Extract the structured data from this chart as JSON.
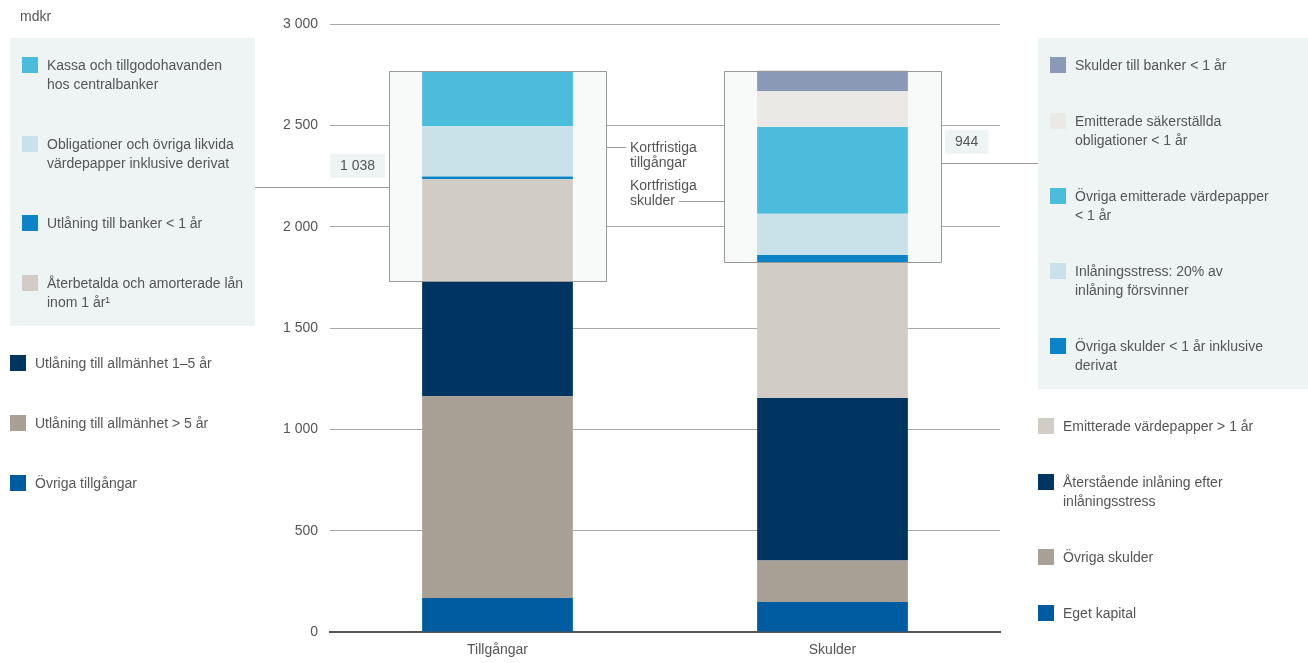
{
  "chart_data": {
    "type": "bar",
    "stacked": true,
    "categories": [
      "Tillgångar",
      "Skulder"
    ],
    "ylim": [
      0,
      3000
    ],
    "yticks": [
      0,
      500,
      {
        "value": 1000,
        "label": "1 000"
      },
      {
        "value": 1500,
        "label": "1 500"
      },
      {
        "value": 2000,
        "label": "2 000"
      },
      {
        "value": 2500,
        "label": "2 500"
      },
      {
        "value": 3000,
        "label": "3 000"
      }
    ],
    "grid": "y",
    "legend": "left and right",
    "series": [
      {
        "name": "Övriga tillgångar",
        "color": "#005ca1",
        "values": [
          168,
          null
        ]
      },
      {
        "name": "Utlåning till allmänhet > 5 år",
        "color": "#a89f95",
        "values": [
          995,
          null
        ]
      },
      {
        "name": "Utlåning till allmänhet 1–5 år",
        "color": "#003562",
        "values": [
          567,
          null
        ]
      },
      {
        "name": "Återbetalda och amorterade lån inom 1 år¹",
        "color": "#d1cdc6",
        "values": [
          504,
          null
        ]
      },
      {
        "name": "Utlåning till banker < 1 år",
        "color": "#0a84c6",
        "values": [
          14,
          null
        ]
      },
      {
        "name": "Obligationer och övriga likvida värdepapper inklusive derivat",
        "color": "#c9e1e8",
        "values": [
          249,
          null
        ]
      },
      {
        "name": "Kassa och tillgodohavanden hos centralbanker",
        "color": "#4bbcdb",
        "values": [
          271,
          null
        ]
      },
      {
        "name": "Eget kapital",
        "color": "#005ca1",
        "values": [
          null,
          148
        ]
      },
      {
        "name": "Övriga skulder",
        "color": "#a89f95",
        "values": [
          null,
          205
        ]
      },
      {
        "name": "Återstående inlåning efter inlåningsstress",
        "color": "#003562",
        "values": [
          null,
          802
        ]
      },
      {
        "name": "Emitterade värdepapper > 1 år",
        "color": "#d1cdc6",
        "values": [
          null,
          670
        ]
      },
      {
        "name": "Övriga skulder < 1 år inklusive derivat",
        "color": "#0a84c6",
        "values": [
          null,
          35
        ]
      },
      {
        "name": "Inlåningsstress: 20% av inlåning försvinner",
        "color": "#c9e1e8",
        "values": [
          null,
          204
        ]
      },
      {
        "name": "Övriga emitterade värdepapper < 1 år",
        "color": "#4bbcdb",
        "values": [
          null,
          428
        ]
      },
      {
        "name": "Emitterade säkerställda obligationer < 1 år",
        "color": "#eae9e5",
        "values": [
          null,
          176
        ]
      },
      {
        "name": "Skulder till banker < 1 år",
        "color": "#8a99b5",
        "values": [
          null,
          101
        ]
      }
    ],
    "bands": [
      {
        "axis": "y",
        "from": 1730,
        "to": 2768,
        "label": "1 038",
        "color": "#f8fafa"
      },
      {
        "axis": "y",
        "from": 1825,
        "to": 2768,
        "label": "944",
        "color": "#f8fafa"
      }
    ],
    "annotations": [
      "mdkr",
      "Kortfristiga tillgångar",
      "Kortfristiga skulder"
    ]
  }
}
